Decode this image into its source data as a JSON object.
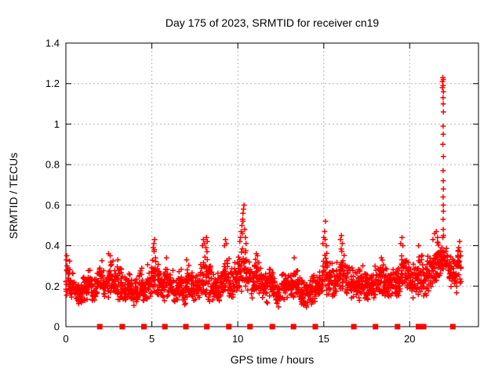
{
  "chart_data": {
    "type": "scatter",
    "title": "Day 175 of 2023, SRMTID for receiver cn19",
    "xlabel": "GPS time / hours",
    "ylabel": "SRMTID / TECUs",
    "xlim": [
      0,
      24
    ],
    "ylim": [
      0,
      1.4
    ],
    "xticks": [
      {
        "v": 0,
        "label": "0"
      },
      {
        "v": 5,
        "label": "5"
      },
      {
        "v": 10,
        "label": "10"
      },
      {
        "v": 15,
        "label": "15"
      },
      {
        "v": 20,
        "label": "20"
      }
    ],
    "yticks": [
      {
        "v": 0,
        "label": "0"
      },
      {
        "v": 0.2,
        "label": "0.2"
      },
      {
        "v": 0.4,
        "label": "0.4"
      },
      {
        "v": 0.6,
        "label": "0.6"
      },
      {
        "v": 0.8,
        "label": "0.8"
      },
      {
        "v": 1,
        "label": "1"
      },
      {
        "v": 1.2,
        "label": "1.2"
      },
      {
        "v": 1.4,
        "label": "1.4"
      }
    ],
    "grid": true,
    "legend": "none",
    "marker": "plus",
    "zero_marker": "filled-square",
    "colors": {
      "marker": "#ff0000",
      "grid": "#b5b5b5",
      "axis": "#000000",
      "background": "#ffffff"
    },
    "band_step_hours": 0.25,
    "points_per_bin": 22,
    "band": [
      [
        0.14,
        0.34
      ],
      [
        0.12,
        0.3
      ],
      [
        0.1,
        0.23
      ],
      [
        0.09,
        0.21
      ],
      [
        0.11,
        0.27
      ],
      [
        0.12,
        0.3
      ],
      [
        0.1,
        0.24
      ],
      [
        0.13,
        0.31
      ],
      [
        0.14,
        0.33
      ],
      [
        0.12,
        0.28
      ],
      [
        0.14,
        0.35
      ],
      [
        0.13,
        0.3
      ],
      [
        0.12,
        0.31
      ],
      [
        0.1,
        0.26
      ],
      [
        0.12,
        0.28
      ],
      [
        0.1,
        0.24
      ],
      [
        0.1,
        0.26
      ],
      [
        0.12,
        0.3
      ],
      [
        0.11,
        0.27
      ],
      [
        0.13,
        0.32
      ],
      [
        0.14,
        0.38
      ],
      [
        0.13,
        0.33
      ],
      [
        0.11,
        0.28
      ],
      [
        0.13,
        0.32
      ],
      [
        0.11,
        0.28
      ],
      [
        0.1,
        0.26
      ],
      [
        0.12,
        0.3
      ],
      [
        0.1,
        0.26
      ],
      [
        0.12,
        0.32
      ],
      [
        0.11,
        0.29
      ],
      [
        0.1,
        0.28
      ],
      [
        0.13,
        0.34
      ],
      [
        0.14,
        0.38
      ],
      [
        0.12,
        0.32
      ],
      [
        0.1,
        0.27
      ],
      [
        0.11,
        0.29
      ],
      [
        0.12,
        0.33
      ],
      [
        0.13,
        0.37
      ],
      [
        0.12,
        0.31
      ],
      [
        0.14,
        0.34
      ],
      [
        0.16,
        0.4
      ],
      [
        0.18,
        0.44
      ],
      [
        0.15,
        0.37
      ],
      [
        0.13,
        0.33
      ],
      [
        0.14,
        0.35
      ],
      [
        0.12,
        0.31
      ],
      [
        0.11,
        0.29
      ],
      [
        0.13,
        0.31
      ],
      [
        0.11,
        0.27
      ],
      [
        0.08,
        0.21
      ],
      [
        0.1,
        0.27
      ],
      [
        0.12,
        0.3
      ],
      [
        0.1,
        0.26
      ],
      [
        0.12,
        0.31
      ],
      [
        0.1,
        0.26
      ],
      [
        0.08,
        0.22
      ],
      [
        0.09,
        0.24
      ],
      [
        0.1,
        0.26
      ],
      [
        0.12,
        0.28
      ],
      [
        0.13,
        0.33
      ],
      [
        0.15,
        0.4
      ],
      [
        0.14,
        0.35
      ],
      [
        0.13,
        0.33
      ],
      [
        0.15,
        0.35
      ],
      [
        0.15,
        0.4
      ],
      [
        0.13,
        0.33
      ],
      [
        0.12,
        0.3
      ],
      [
        0.11,
        0.28
      ],
      [
        0.12,
        0.3
      ],
      [
        0.13,
        0.31
      ],
      [
        0.12,
        0.28
      ],
      [
        0.13,
        0.3
      ],
      [
        0.14,
        0.31
      ],
      [
        0.15,
        0.33
      ],
      [
        0.13,
        0.31
      ],
      [
        0.12,
        0.28
      ],
      [
        0.12,
        0.3
      ],
      [
        0.13,
        0.32
      ],
      [
        0.15,
        0.37
      ],
      [
        0.15,
        0.35
      ],
      [
        0.14,
        0.32
      ],
      [
        0.14,
        0.33
      ],
      [
        0.15,
        0.36
      ],
      [
        0.14,
        0.34
      ],
      [
        0.16,
        0.37
      ],
      [
        0.17,
        0.4
      ],
      [
        0.21,
        0.43
      ],
      [
        0.24,
        0.42
      ],
      [
        0.25,
        0.41
      ],
      [
        0.18,
        0.37
      ],
      [
        0.16,
        0.36
      ],
      [
        0.18,
        0.42
      ]
    ],
    "outliers": [
      [
        0.03,
        0.33
      ],
      [
        0.05,
        0.35
      ],
      [
        0.07,
        0.3
      ],
      [
        0.04,
        0.28
      ],
      [
        2.48,
        0.36
      ],
      [
        2.58,
        0.35
      ],
      [
        3.02,
        0.33
      ],
      [
        5.08,
        0.39
      ],
      [
        5.12,
        0.41
      ],
      [
        5.16,
        0.43
      ],
      [
        5.14,
        0.38
      ],
      [
        5.85,
        0.34
      ],
      [
        7.02,
        0.33
      ],
      [
        7.95,
        0.4
      ],
      [
        8.0,
        0.43
      ],
      [
        8.05,
        0.41
      ],
      [
        8.18,
        0.44
      ],
      [
        8.22,
        0.42
      ],
      [
        8.15,
        0.39
      ],
      [
        9.22,
        0.4
      ],
      [
        9.28,
        0.43
      ],
      [
        9.33,
        0.41
      ],
      [
        10.12,
        0.42
      ],
      [
        10.15,
        0.44
      ],
      [
        10.2,
        0.47
      ],
      [
        10.24,
        0.5
      ],
      [
        10.28,
        0.53
      ],
      [
        10.3,
        0.56
      ],
      [
        10.33,
        0.58
      ],
      [
        10.36,
        0.6
      ],
      [
        10.3,
        0.52
      ],
      [
        10.26,
        0.46
      ],
      [
        10.4,
        0.48
      ],
      [
        10.44,
        0.44
      ],
      [
        10.48,
        0.41
      ],
      [
        11.08,
        0.36
      ],
      [
        11.14,
        0.35
      ],
      [
        13.28,
        0.34
      ],
      [
        14.95,
        0.41
      ],
      [
        15.0,
        0.44
      ],
      [
        15.05,
        0.47
      ],
      [
        15.1,
        0.52
      ],
      [
        15.08,
        0.43
      ],
      [
        15.15,
        0.4
      ],
      [
        15.97,
        0.43
      ],
      [
        16.03,
        0.45
      ],
      [
        16.08,
        0.41
      ],
      [
        18.35,
        0.34
      ],
      [
        19.48,
        0.41
      ],
      [
        19.55,
        0.44
      ],
      [
        19.6,
        0.4
      ],
      [
        20.52,
        0.4
      ],
      [
        21.35,
        0.43
      ],
      [
        21.45,
        0.46
      ],
      [
        21.55,
        0.47
      ],
      [
        21.62,
        0.44
      ],
      [
        21.9,
        1.21
      ],
      [
        21.9,
        1.18
      ],
      [
        21.93,
        1.23
      ],
      [
        21.95,
        1.22
      ],
      [
        21.94,
        1.19
      ],
      [
        21.96,
        1.16
      ],
      [
        21.94,
        1.13
      ],
      [
        21.95,
        1.1
      ],
      [
        21.96,
        1.06
      ],
      [
        21.94,
        0.99
      ],
      [
        21.95,
        0.95
      ],
      [
        21.93,
        0.9
      ],
      [
        21.96,
        0.84
      ],
      [
        21.94,
        0.77
      ],
      [
        21.95,
        0.72
      ],
      [
        21.96,
        0.68
      ],
      [
        21.94,
        0.64
      ],
      [
        21.95,
        0.6
      ],
      [
        21.96,
        0.57
      ],
      [
        21.94,
        0.53
      ],
      [
        21.95,
        0.48
      ],
      [
        21.93,
        0.44
      ],
      [
        21.97,
        0.45
      ],
      [
        22.85,
        0.39
      ],
      [
        22.9,
        0.42
      ],
      [
        22.93,
        0.37
      ],
      [
        22.97,
        0.35
      ]
    ],
    "zero_marker_hours": [
      1.97,
      3.28,
      4.54,
      5.76,
      6.98,
      8.2,
      9.48,
      10.71,
      12.01,
      13.24,
      14.51,
      16.75,
      18.01,
      19.29,
      20.51,
      20.81,
      22.51
    ]
  }
}
